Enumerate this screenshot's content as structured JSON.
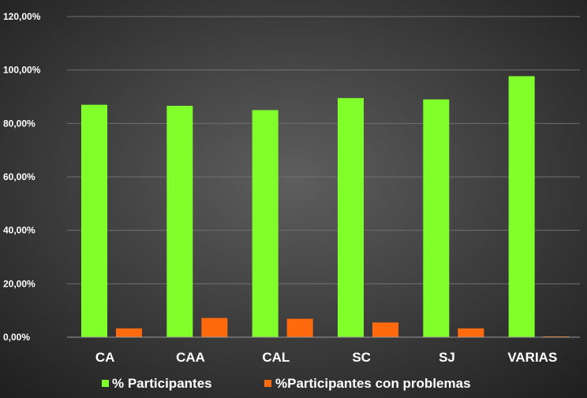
{
  "colors": {
    "background_center": "#5e5e5e",
    "background_edge": "#1e1e1e",
    "gridline": "#6f6f6f",
    "axis_line": "#9a9a9a",
    "text": "#ffffff"
  },
  "chart_data": {
    "type": "bar",
    "categories": [
      "CA",
      "CAA",
      "CAL",
      "SC",
      "SJ",
      "VARIAS"
    ],
    "series": [
      {
        "name": "% Participantes",
        "color": "#80ff2a",
        "values": [
          0.87,
          0.866,
          0.85,
          0.895,
          0.89,
          0.977
        ]
      },
      {
        "name": "%Participantes con problemas",
        "color": "#ff6a0e",
        "values": [
          0.033,
          0.072,
          0.069,
          0.055,
          0.033,
          0.003
        ]
      }
    ],
    "ylim": [
      0,
      1.2
    ],
    "yticks": [
      {
        "value": 0,
        "label": "0,00%"
      },
      {
        "value": 0.2,
        "label": "20,00%"
      },
      {
        "value": 0.4,
        "label": "40,00%"
      },
      {
        "value": 0.6,
        "label": "60,00%"
      },
      {
        "value": 0.8,
        "label": "80,00%"
      },
      {
        "value": 1.0,
        "label": "100,00%"
      },
      {
        "value": 1.2,
        "label": "120,00%"
      }
    ],
    "grid": true,
    "legend_position": "bottom",
    "title": "",
    "xlabel": "",
    "ylabel": ""
  }
}
